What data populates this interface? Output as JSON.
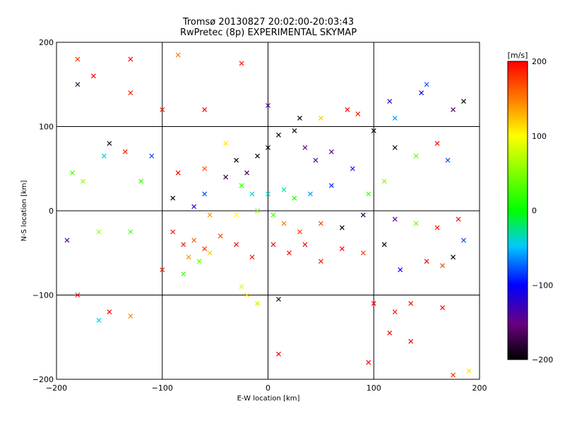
{
  "chart_data": {
    "type": "scatter",
    "title": "Tromsø 20130827 20:02:00-20:03:43",
    "subtitle": "RwPretec (8p) EXPERIMENTAL SKYMAP",
    "xlabel": "E-W location [km]",
    "ylabel": "N-S location [km]",
    "xlim": [
      -200,
      200
    ],
    "ylim": [
      -200,
      200
    ],
    "xticks": [
      -200,
      -100,
      0,
      100,
      200
    ],
    "yticks": [
      -200,
      -100,
      0,
      100,
      200
    ],
    "grid": true,
    "colorbar": {
      "label": "[m/s]",
      "min": -200,
      "max": 200,
      "ticks": [
        -200,
        -100,
        0,
        100,
        200
      ],
      "colormap": "rainbow (black-purple-blue-cyan-green-yellow-orange-red)"
    },
    "markers": {
      "crosses": "×",
      "small_points": "+"
    },
    "points": [
      {
        "x": -180,
        "y": 180,
        "v": 180,
        "m": "x"
      },
      {
        "x": -130,
        "y": 180,
        "v": 200,
        "m": "x"
      },
      {
        "x": -85,
        "y": 185,
        "v": 150,
        "m": "x"
      },
      {
        "x": -25,
        "y": 175,
        "v": 200,
        "m": "x"
      },
      {
        "x": 150,
        "y": 150,
        "v": -80,
        "m": "x"
      },
      {
        "x": 145,
        "y": 140,
        "v": -100,
        "m": "x"
      },
      {
        "x": 185,
        "y": 130,
        "v": -200,
        "m": "x"
      },
      {
        "x": 115,
        "y": 130,
        "v": -120,
        "m": "x"
      },
      {
        "x": 175,
        "y": 120,
        "v": -160,
        "m": "x"
      },
      {
        "x": 120,
        "y": 110,
        "v": -60,
        "m": "x"
      },
      {
        "x": -180,
        "y": 150,
        "v": -180,
        "m": "x"
      },
      {
        "x": -165,
        "y": 160,
        "v": 200,
        "m": "x"
      },
      {
        "x": -130,
        "y": 140,
        "v": 190,
        "m": "x"
      },
      {
        "x": -100,
        "y": 120,
        "v": 190,
        "m": "x"
      },
      {
        "x": -60,
        "y": 120,
        "v": 200,
        "m": "x"
      },
      {
        "x": 0,
        "y": 125,
        "v": -140,
        "m": "x"
      },
      {
        "x": 30,
        "y": 110,
        "v": -200,
        "m": "x"
      },
      {
        "x": 75,
        "y": 120,
        "v": 200,
        "m": "x"
      },
      {
        "x": 85,
        "y": 115,
        "v": 190,
        "m": "x"
      },
      {
        "x": 50,
        "y": 110,
        "v": 120,
        "m": "x"
      },
      {
        "x": -150,
        "y": 80,
        "v": -180,
        "m": "x"
      },
      {
        "x": -155,
        "y": 65,
        "v": -40,
        "m": "x"
      },
      {
        "x": -135,
        "y": 70,
        "v": 190,
        "m": "x"
      },
      {
        "x": -110,
        "y": 65,
        "v": -80,
        "m": "x"
      },
      {
        "x": -85,
        "y": 45,
        "v": 200,
        "m": "x"
      },
      {
        "x": -60,
        "y": 50,
        "v": 170,
        "m": "x"
      },
      {
        "x": -40,
        "y": 80,
        "v": 110,
        "m": "x"
      },
      {
        "x": -30,
        "y": 60,
        "v": -200,
        "m": "x"
      },
      {
        "x": -20,
        "y": 45,
        "v": -170,
        "m": "x"
      },
      {
        "x": -10,
        "y": 65,
        "v": -190,
        "m": "x"
      },
      {
        "x": 0,
        "y": 75,
        "v": -200,
        "m": "x"
      },
      {
        "x": 10,
        "y": 90,
        "v": -200,
        "m": "x"
      },
      {
        "x": 25,
        "y": 95,
        "v": -190,
        "m": "x"
      },
      {
        "x": 35,
        "y": 75,
        "v": -160,
        "m": "x"
      },
      {
        "x": 45,
        "y": 60,
        "v": -140,
        "m": "x"
      },
      {
        "x": 60,
        "y": 70,
        "v": -150,
        "m": "x"
      },
      {
        "x": 80,
        "y": 50,
        "v": -120,
        "m": "x"
      },
      {
        "x": 100,
        "y": 95,
        "v": -200,
        "m": "x"
      },
      {
        "x": 120,
        "y": 75,
        "v": -200,
        "m": "x"
      },
      {
        "x": 140,
        "y": 65,
        "v": 40,
        "m": "x"
      },
      {
        "x": 160,
        "y": 80,
        "v": 200,
        "m": "x"
      },
      {
        "x": 170,
        "y": 60,
        "v": -80,
        "m": "x"
      },
      {
        "x": -185,
        "y": 45,
        "v": 30,
        "m": "x"
      },
      {
        "x": -175,
        "y": 35,
        "v": 60,
        "m": "x"
      },
      {
        "x": -120,
        "y": 35,
        "v": 20,
        "m": "x"
      },
      {
        "x": -90,
        "y": 15,
        "v": -200,
        "m": "x"
      },
      {
        "x": -60,
        "y": 20,
        "v": -80,
        "m": "x"
      },
      {
        "x": -40,
        "y": 40,
        "v": -180,
        "m": "x"
      },
      {
        "x": -25,
        "y": 30,
        "v": 20,
        "m": "x"
      },
      {
        "x": -15,
        "y": 20,
        "v": -40,
        "m": "x"
      },
      {
        "x": 0,
        "y": 20,
        "v": -40,
        "m": "x"
      },
      {
        "x": 15,
        "y": 25,
        "v": -30,
        "m": "x"
      },
      {
        "x": 25,
        "y": 15,
        "v": 10,
        "m": "x"
      },
      {
        "x": 40,
        "y": 20,
        "v": -60,
        "m": "x"
      },
      {
        "x": 60,
        "y": 30,
        "v": -90,
        "m": "x"
      },
      {
        "x": 95,
        "y": 20,
        "v": 30,
        "m": "x"
      },
      {
        "x": 110,
        "y": 35,
        "v": 50,
        "m": "x"
      },
      {
        "x": -70,
        "y": 5,
        "v": -120,
        "m": "x"
      },
      {
        "x": -55,
        "y": -5,
        "v": 140,
        "m": "x"
      },
      {
        "x": -30,
        "y": -5,
        "v": 100,
        "m": "x"
      },
      {
        "x": -10,
        "y": 0,
        "v": 50,
        "m": "x"
      },
      {
        "x": 5,
        "y": -5,
        "v": 30,
        "m": "x"
      },
      {
        "x": 15,
        "y": -15,
        "v": 150,
        "m": "x"
      },
      {
        "x": 30,
        "y": -25,
        "v": 180,
        "m": "x"
      },
      {
        "x": 50,
        "y": -15,
        "v": 170,
        "m": "x"
      },
      {
        "x": 70,
        "y": -20,
        "v": -200,
        "m": "x"
      },
      {
        "x": 90,
        "y": -5,
        "v": -180,
        "m": "x"
      },
      {
        "x": 120,
        "y": -10,
        "v": -140,
        "m": "x"
      },
      {
        "x": 140,
        "y": -15,
        "v": 40,
        "m": "x"
      },
      {
        "x": 160,
        "y": -20,
        "v": 190,
        "m": "x"
      },
      {
        "x": 180,
        "y": -10,
        "v": 200,
        "m": "x"
      },
      {
        "x": 185,
        "y": -35,
        "v": -80,
        "m": "x"
      },
      {
        "x": 175,
        "y": -55,
        "v": -200,
        "m": "x"
      },
      {
        "x": 165,
        "y": -65,
        "v": 170,
        "m": "x"
      },
      {
        "x": -190,
        "y": -35,
        "v": -140,
        "m": "x"
      },
      {
        "x": -160,
        "y": -25,
        "v": 60,
        "m": "x"
      },
      {
        "x": -130,
        "y": -25,
        "v": 30,
        "m": "x"
      },
      {
        "x": -90,
        "y": -25,
        "v": 200,
        "m": "x"
      },
      {
        "x": -80,
        "y": -40,
        "v": 190,
        "m": "x"
      },
      {
        "x": -70,
        "y": -35,
        "v": 160,
        "m": "x"
      },
      {
        "x": -60,
        "y": -45,
        "v": 180,
        "m": "x"
      },
      {
        "x": -75,
        "y": -55,
        "v": 140,
        "m": "x"
      },
      {
        "x": -65,
        "y": -60,
        "v": 40,
        "m": "x"
      },
      {
        "x": -55,
        "y": -50,
        "v": 120,
        "m": "x"
      },
      {
        "x": -45,
        "y": -30,
        "v": 170,
        "m": "x"
      },
      {
        "x": -30,
        "y": -40,
        "v": 200,
        "m": "x"
      },
      {
        "x": -15,
        "y": -55,
        "v": 190,
        "m": "x"
      },
      {
        "x": 5,
        "y": -40,
        "v": 200,
        "m": "x"
      },
      {
        "x": 20,
        "y": -50,
        "v": 200,
        "m": "x"
      },
      {
        "x": 35,
        "y": -40,
        "v": 200,
        "m": "x"
      },
      {
        "x": 50,
        "y": -60,
        "v": 190,
        "m": "x"
      },
      {
        "x": 70,
        "y": -45,
        "v": 200,
        "m": "x"
      },
      {
        "x": 90,
        "y": -50,
        "v": 180,
        "m": "x"
      },
      {
        "x": 110,
        "y": -40,
        "v": -200,
        "m": "x"
      },
      {
        "x": 125,
        "y": -70,
        "v": -100,
        "m": "x"
      },
      {
        "x": 150,
        "y": -60,
        "v": 200,
        "m": "x"
      },
      {
        "x": -100,
        "y": -70,
        "v": 190,
        "m": "x"
      },
      {
        "x": -80,
        "y": -75,
        "v": 20,
        "m": "x"
      },
      {
        "x": -25,
        "y": -90,
        "v": 90,
        "m": "x"
      },
      {
        "x": -20,
        "y": -100,
        "v": 110,
        "m": "x"
      },
      {
        "x": -10,
        "y": -110,
        "v": 70,
        "m": "x"
      },
      {
        "x": 10,
        "y": -105,
        "v": -180,
        "m": "x"
      },
      {
        "x": 100,
        "y": -110,
        "v": 200,
        "m": "x"
      },
      {
        "x": 120,
        "y": -120,
        "v": 190,
        "m": "x"
      },
      {
        "x": 135,
        "y": -110,
        "v": 200,
        "m": "x"
      },
      {
        "x": 165,
        "y": -115,
        "v": 200,
        "m": "x"
      },
      {
        "x": -150,
        "y": -120,
        "v": 200,
        "m": "x"
      },
      {
        "x": -160,
        "y": -130,
        "v": -40,
        "m": "x"
      },
      {
        "x": -130,
        "y": -125,
        "v": 150,
        "m": "x"
      },
      {
        "x": -180,
        "y": -100,
        "v": 200,
        "m": "x"
      },
      {
        "x": 115,
        "y": -145,
        "v": 200,
        "m": "x"
      },
      {
        "x": 135,
        "y": -155,
        "v": 200,
        "m": "x"
      },
      {
        "x": 95,
        "y": -180,
        "v": 200,
        "m": "x"
      },
      {
        "x": 10,
        "y": -170,
        "v": 200,
        "m": "x"
      },
      {
        "x": 190,
        "y": -190,
        "v": 110,
        "m": "x"
      },
      {
        "x": 175,
        "y": -195,
        "v": 180,
        "m": "x"
      }
    ]
  }
}
